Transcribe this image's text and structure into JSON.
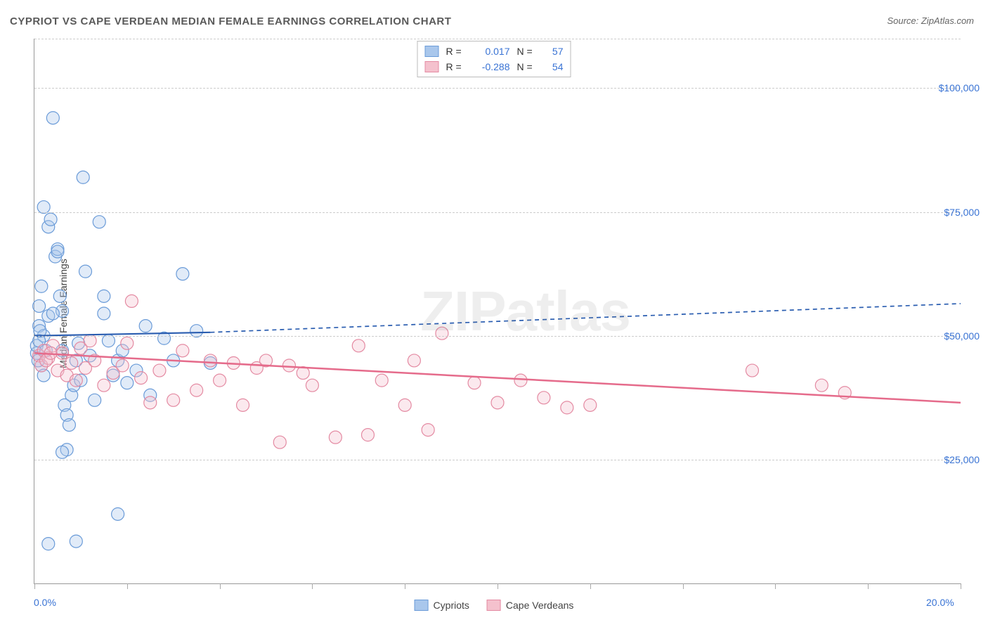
{
  "title": "CYPRIOT VS CAPE VERDEAN MEDIAN FEMALE EARNINGS CORRELATION CHART",
  "source": "Source: ZipAtlas.com",
  "ylabel": "Median Female Earnings",
  "watermark": "ZIPatlas",
  "chart": {
    "type": "scatter",
    "background_color": "#ffffff",
    "grid_color": "#cccccc",
    "axis_color": "#999999",
    "xlim": [
      0,
      20
    ],
    "ylim": [
      0,
      110000
    ],
    "xtick_positions": [
      0,
      2,
      4,
      6,
      8,
      10,
      12,
      14,
      16,
      18,
      20
    ],
    "xtick_labels_shown": {
      "0": "0.0%",
      "20": "20.0%"
    },
    "ytick_positions": [
      25000,
      50000,
      75000,
      100000
    ],
    "ytick_labels": [
      "$25,000",
      "$50,000",
      "$75,000",
      "$100,000"
    ],
    "marker_radius": 9,
    "marker_fill_opacity": 0.35,
    "marker_stroke_width": 1.2,
    "series": [
      {
        "name": "Cypriots",
        "color_fill": "#a9c7ec",
        "color_stroke": "#6a9bd8",
        "R": "0.017",
        "N": "57",
        "trend": {
          "solid": {
            "x1": 0.0,
            "y1": 50000,
            "x2": 3.8,
            "y2": 50700
          },
          "dashed": {
            "x1": 3.8,
            "y1": 50700,
            "x2": 20.0,
            "y2": 56500
          },
          "color": "#2a5db0",
          "width": 2.2
        },
        "points": [
          [
            0.05,
            46500
          ],
          [
            0.05,
            48000
          ],
          [
            0.1,
            52000
          ],
          [
            0.1,
            56000
          ],
          [
            0.15,
            60000
          ],
          [
            0.15,
            44000
          ],
          [
            0.2,
            50000
          ],
          [
            0.2,
            42000
          ],
          [
            0.25,
            47000
          ],
          [
            0.3,
            54000
          ],
          [
            0.3,
            72000
          ],
          [
            0.35,
            73500
          ],
          [
            0.4,
            94000
          ],
          [
            0.45,
            66000
          ],
          [
            0.5,
            67500
          ],
          [
            0.5,
            67000
          ],
          [
            0.55,
            58000
          ],
          [
            0.6,
            55000
          ],
          [
            0.6,
            47000
          ],
          [
            0.65,
            36000
          ],
          [
            0.7,
            34000
          ],
          [
            0.7,
            27000
          ],
          [
            0.75,
            32000
          ],
          [
            0.8,
            38000
          ],
          [
            0.85,
            40000
          ],
          [
            0.9,
            45000
          ],
          [
            0.95,
            48500
          ],
          [
            1.0,
            41000
          ],
          [
            1.05,
            82000
          ],
          [
            1.1,
            63000
          ],
          [
            1.2,
            46000
          ],
          [
            1.3,
            37000
          ],
          [
            1.4,
            73000
          ],
          [
            1.5,
            58000
          ],
          [
            1.5,
            54500
          ],
          [
            1.6,
            49000
          ],
          [
            1.7,
            42000
          ],
          [
            1.8,
            45000
          ],
          [
            1.8,
            14000
          ],
          [
            1.9,
            47000
          ],
          [
            2.0,
            40500
          ],
          [
            2.2,
            43000
          ],
          [
            2.4,
            52000
          ],
          [
            2.5,
            38000
          ],
          [
            2.8,
            49500
          ],
          [
            3.0,
            45000
          ],
          [
            3.2,
            62500
          ],
          [
            3.5,
            51000
          ],
          [
            3.8,
            44500
          ],
          [
            0.2,
            76000
          ],
          [
            0.3,
            8000
          ],
          [
            0.9,
            8500
          ],
          [
            0.6,
            26500
          ],
          [
            0.4,
            54500
          ],
          [
            0.1,
            49000
          ],
          [
            0.08,
            45000
          ],
          [
            0.12,
            51000
          ]
        ]
      },
      {
        "name": "Cape Verdeans",
        "color_fill": "#f4c1cd",
        "color_stroke": "#e48aa2",
        "R": "-0.288",
        "N": "54",
        "trend": {
          "solid": {
            "x1": 0.0,
            "y1": 46500,
            "x2": 20.0,
            "y2": 36500
          },
          "dashed": null,
          "color": "#e56b8b",
          "width": 2.5
        },
        "points": [
          [
            0.1,
            46000
          ],
          [
            0.15,
            44000
          ],
          [
            0.2,
            47000
          ],
          [
            0.3,
            45500
          ],
          [
            0.4,
            48000
          ],
          [
            0.5,
            43000
          ],
          [
            0.6,
            46500
          ],
          [
            0.7,
            42000
          ],
          [
            0.8,
            44500
          ],
          [
            0.9,
            41000
          ],
          [
            1.0,
            47500
          ],
          [
            1.1,
            43500
          ],
          [
            1.3,
            45000
          ],
          [
            1.5,
            40000
          ],
          [
            1.7,
            42500
          ],
          [
            1.9,
            44000
          ],
          [
            2.1,
            57000
          ],
          [
            2.3,
            41500
          ],
          [
            2.5,
            36500
          ],
          [
            2.7,
            43000
          ],
          [
            3.0,
            37000
          ],
          [
            3.2,
            47000
          ],
          [
            3.5,
            39000
          ],
          [
            3.8,
            45000
          ],
          [
            4.0,
            41000
          ],
          [
            4.3,
            44500
          ],
          [
            4.5,
            36000
          ],
          [
            4.8,
            43500
          ],
          [
            5.0,
            45000
          ],
          [
            5.3,
            28500
          ],
          [
            5.5,
            44000
          ],
          [
            5.8,
            42500
          ],
          [
            6.0,
            40000
          ],
          [
            6.5,
            29500
          ],
          [
            7.0,
            48000
          ],
          [
            7.2,
            30000
          ],
          [
            7.5,
            41000
          ],
          [
            8.0,
            36000
          ],
          [
            8.2,
            45000
          ],
          [
            8.5,
            31000
          ],
          [
            8.8,
            50500
          ],
          [
            9.5,
            40500
          ],
          [
            10.0,
            36500
          ],
          [
            10.5,
            41000
          ],
          [
            11.0,
            37500
          ],
          [
            11.5,
            35500
          ],
          [
            12.0,
            36000
          ],
          [
            15.5,
            43000
          ],
          [
            17.0,
            40000
          ],
          [
            17.5,
            38500
          ],
          [
            1.2,
            49000
          ],
          [
            2.0,
            48500
          ],
          [
            0.25,
            45000
          ],
          [
            0.35,
            46500
          ]
        ]
      }
    ]
  },
  "legend_top": {
    "r_label": "R =",
    "n_label": "N ="
  },
  "legend_bottom": [
    {
      "label": "Cypriots"
    },
    {
      "label": "Cape Verdeans"
    }
  ]
}
